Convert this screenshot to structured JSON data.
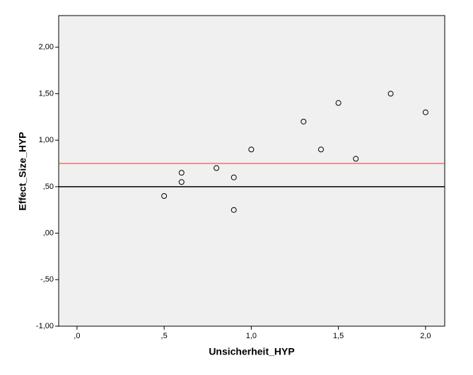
{
  "chart_data": {
    "type": "scatter",
    "x_label": "Unsicherheit_HYP",
    "y_label": "Effect_Size_HYP",
    "series": [
      {
        "name": null,
        "color": "#000000",
        "x": [
          0.5,
          0.6,
          0.6,
          0.8,
          0.9,
          0.9,
          1.0,
          1.3,
          1.4,
          1.5,
          1.6,
          1.8,
          2.0
        ],
        "values": [
          0.4,
          0.65,
          0.55,
          0.7,
          0.6,
          0.25,
          0.9,
          1.2,
          0.9,
          1.4,
          0.8,
          1.5,
          1.3
        ]
      }
    ],
    "xlim": [
      -0.105,
      2.11
    ],
    "ylim": [
      -1,
      2.34
    ],
    "xticks": [
      {
        "value": 0,
        "label": ",0"
      },
      {
        "value": 0.5,
        "label": ",5"
      },
      {
        "value": 1,
        "label": "1,0"
      },
      {
        "value": 1.5,
        "label": "1,5"
      },
      {
        "value": 2,
        "label": "2,0"
      }
    ],
    "yticks": [
      {
        "value": -1,
        "label": "-1,00"
      },
      {
        "value": -0.5,
        "label": "-,50"
      },
      {
        "value": 0,
        "label": ",00"
      },
      {
        "value": 0.5,
        "label": ",50"
      },
      {
        "value": 1,
        "label": "1,00"
      },
      {
        "value": 1.5,
        "label": "1,50"
      },
      {
        "value": 2,
        "label": "2,00"
      }
    ],
    "reference_lines": [
      {
        "value": 0.75,
        "color": "#e8322d"
      },
      {
        "value": 0.5,
        "color": "#000000"
      }
    ],
    "grid": false
  }
}
